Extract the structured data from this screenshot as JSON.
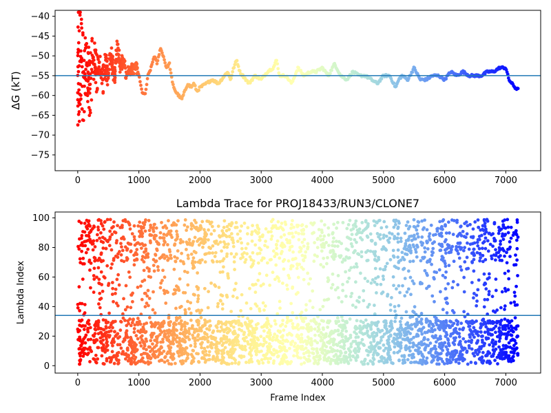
{
  "chart_data": [
    {
      "type": "scatter",
      "title": "",
      "xlabel": "",
      "ylabel": "ΔG (kT)",
      "xlim": [
        -370,
        7570
      ],
      "ylim": [
        -79,
        -38.5
      ],
      "xticks": [
        0,
        1000,
        2000,
        3000,
        4000,
        5000,
        6000,
        7000
      ],
      "yticks": [
        -75,
        -70,
        -65,
        -60,
        -55,
        -50,
        -45,
        -40
      ],
      "colormap": "rainbow, reversed (red at frame 0, violet at frame 7200)",
      "grid": false,
      "hline": {
        "y": -55,
        "color": "#1f77b4"
      },
      "n_frames": 7200,
      "trace_x": [
        0,
        50,
        100,
        150,
        200,
        250,
        300,
        350,
        400,
        450,
        500,
        550,
        600,
        650,
        700,
        750,
        800,
        850,
        900,
        950,
        1000,
        1050,
        1100,
        1150,
        1200,
        1250,
        1300,
        1350,
        1400,
        1450,
        1500,
        1550,
        1600,
        1650,
        1700,
        1750,
        1800,
        1850,
        1900,
        1950,
        2000,
        2100,
        2200,
        2300,
        2400,
        2450,
        2500,
        2550,
        2600,
        2650,
        2700,
        2800,
        2900,
        3000,
        3100,
        3200,
        3250,
        3300,
        3400,
        3500,
        3600,
        3700,
        3800,
        3900,
        4000,
        4100,
        4200,
        4300,
        4400,
        4500,
        4600,
        4700,
        4800,
        4900,
        5000,
        5100,
        5200,
        5250,
        5300,
        5400,
        5500,
        5600,
        5700,
        5800,
        5900,
        6000,
        6100,
        6200,
        6300,
        6400,
        6500,
        6600,
        6700,
        6800,
        6900,
        7000,
        7050,
        7100,
        7150,
        7200
      ],
      "trace_y": [
        -55,
        -50,
        -56,
        -52,
        -58,
        -50,
        -54,
        -53,
        -57,
        -52,
        -55,
        -50,
        -56,
        -47,
        -53,
        -51,
        -55,
        -53,
        -54,
        -52,
        -55,
        -59,
        -60,
        -55,
        -53,
        -50,
        -52,
        -48,
        -50,
        -53,
        -52,
        -57,
        -59,
        -60,
        -61,
        -59,
        -57,
        -58,
        -57,
        -59,
        -58,
        -57,
        -56,
        -57,
        -55,
        -54,
        -56,
        -53,
        -51,
        -54,
        -55,
        -57,
        -55,
        -56,
        -54,
        -53,
        -51,
        -55,
        -55,
        -57,
        -53,
        -55,
        -54,
        -54,
        -53,
        -55,
        -52,
        -55,
        -56,
        -54,
        -55,
        -55,
        -56,
        -57,
        -55,
        -55,
        -58,
        -56,
        -55,
        -56,
        -53,
        -56,
        -56,
        -55,
        -55,
        -56,
        -54,
        -55,
        -54,
        -55,
        -55,
        -55,
        -54,
        -54,
        -53,
        -53,
        -56,
        -57,
        -58,
        -58.5
      ]
    },
    {
      "type": "scatter",
      "title": "Lambda Trace for PROJ18433/RUN3/CLONE7",
      "xlabel": "Frame Index",
      "ylabel": "Lambda Index",
      "xlim": [
        -370,
        7570
      ],
      "ylim": [
        -5,
        104
      ],
      "xticks": [
        0,
        1000,
        2000,
        3000,
        4000,
        5000,
        6000,
        7000
      ],
      "yticks": [
        0,
        20,
        40,
        60,
        80,
        100
      ],
      "colormap": "rainbow, reversed (red at frame 0, violet at frame 7200)",
      "grid": false,
      "hline": {
        "y": 34,
        "color": "#1f77b4"
      },
      "n_frames": 7200,
      "value_range": [
        1,
        99
      ],
      "note_distribution": "points spread over the full 1–99 lambda range across all frames"
    }
  ]
}
